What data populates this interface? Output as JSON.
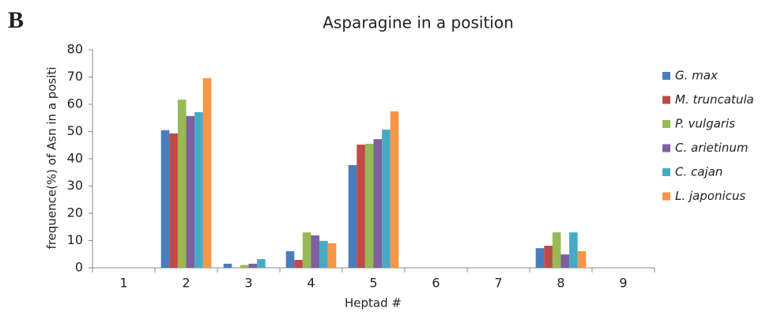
{
  "chart_data": {
    "type": "bar",
    "panel_label": "B",
    "title": "Asparagine in a position",
    "x_label": "Heptad #",
    "y_label": "frequence(%) of Asn in a positi",
    "categories": [
      "1",
      "2",
      "3",
      "4",
      "5",
      "6",
      "7",
      "8",
      "9"
    ],
    "series": [
      {
        "name": "G. max",
        "color": "#4a7ebb",
        "values": [
          0,
          50.5,
          1.5,
          6.1,
          37.7,
          0,
          0,
          7.2,
          0
        ]
      },
      {
        "name": "M. truncatula",
        "color": "#be4b48",
        "values": [
          0,
          49.3,
          0,
          2.9,
          45.2,
          0,
          0,
          8.1,
          0
        ]
      },
      {
        "name": "P. vulgaris",
        "color": "#98b954",
        "values": [
          0,
          61.7,
          1,
          13,
          45.5,
          0,
          0,
          13,
          0
        ]
      },
      {
        "name": "C. arietinum",
        "color": "#7d60a0",
        "values": [
          0,
          55.7,
          1.5,
          11.9,
          47.2,
          0,
          0,
          4.9,
          0
        ]
      },
      {
        "name": "C. cajan",
        "color": "#46aac5",
        "values": [
          0,
          57.1,
          3.2,
          9.9,
          50.7,
          0,
          0,
          13,
          0
        ]
      },
      {
        "name": "L. japonicus",
        "color": "#f79646",
        "values": [
          0,
          69.6,
          0,
          9,
          57.4,
          0,
          0,
          6.1,
          0
        ]
      }
    ],
    "ylim": [
      0,
      80
    ],
    "yticks": [
      0,
      10,
      20,
      30,
      40,
      50,
      60,
      70,
      80
    ],
    "legend": "right"
  }
}
